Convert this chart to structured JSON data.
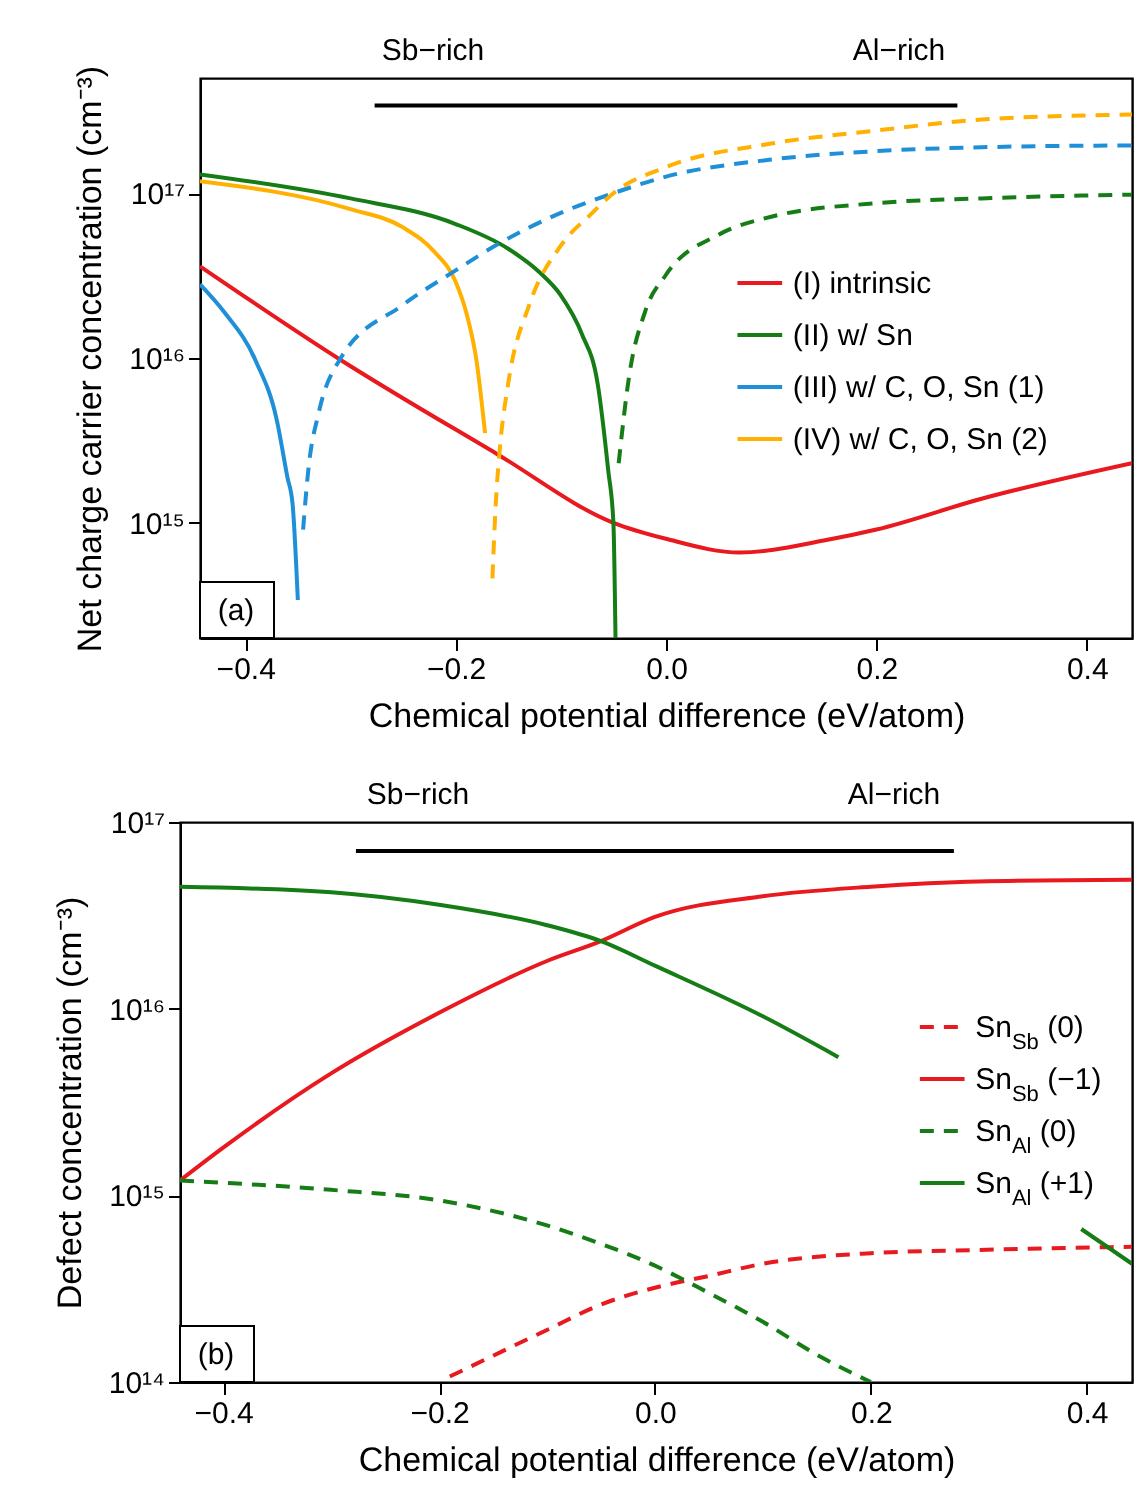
{
  "chart_data": [
    {
      "type": "line",
      "xlabel": "Chemical potential difference (eV/atom)",
      "ylabel": "Net charge carrier concentration (cm⁻³)",
      "xlim": [
        -0.443,
        0.443
      ],
      "ylim": [
        200000000000000.0,
        5e+17
      ],
      "log": true,
      "legend": "right",
      "xticks": [
        {
          "value": -0.4,
          "label": "−0.4"
        },
        {
          "value": -0.2,
          "label": "−0.2"
        },
        {
          "value": 0,
          "label": "0.0"
        },
        {
          "value": 0.2,
          "label": "0.2"
        },
        {
          "value": 0.4,
          "label": "0.4"
        }
      ],
      "yticks": [
        {
          "value": 1000000000000000.0,
          "label": "10¹⁵"
        },
        {
          "value": 1e+16,
          "label": "10¹⁶"
        },
        {
          "value": 1e+17,
          "label": "10¹⁷"
        }
      ],
      "annotations": [
        "Sb−rich",
        "Al−rich",
        "(a)"
      ],
      "series": [
        {
          "name": "(I) intrinsic",
          "color": "#e8191f",
          "line_style": "solid",
          "x": [
            -0.443,
            -0.31,
            -0.16,
            -0.05,
            0.0,
            0.07,
            0.15,
            0.2,
            0.3,
            0.443
          ],
          "values": [
            3.6e+16,
            9800000000000000.0,
            2600000000000000.0,
            1000000000000000.0,
            800000000000000.0,
            660000000000000.0,
            780000000000000.0,
            910000000000000.0,
            1400000000000000.0,
            2300000000000000.0
          ]
        },
        {
          "name": "(II) w/ Sn",
          "color": "#167d16",
          "line_style": "solid",
          "x": [
            -0.443,
            -0.3,
            -0.2,
            -0.15,
            -0.12,
            -0.1,
            -0.08,
            -0.065,
            -0.055,
            -0.05,
            -0.048
          ],
          "values": [
            1.3e+17,
            9.3e+16,
            6.5e+16,
            4.6e+16,
            3.3e+16,
            2.4e+16,
            1.4e+16,
            7000000000000000.0,
            2100000000000000.0,
            1000000000000000.0,
            200000000000000.0
          ]
        },
        {
          "name": "(III) w/ C, O, Sn (1)",
          "color": "#1f90d8",
          "line_style": "solid",
          "x": [
            -0.443,
            -0.42,
            -0.39,
            -0.37,
            -0.36,
            -0.355,
            -0.35
          ],
          "values": [
            2.8e+16,
            1.9e+16,
            9600000000000000.0,
            4200000000000000.0,
            1900000000000000.0,
            1300000000000000.0,
            340000000000000.0
          ]
        },
        {
          "name": "(IV) w/ C, O, Sn (2)",
          "color": "#ffb000",
          "line_style": "solid",
          "x": [
            -0.443,
            -0.3,
            -0.25,
            -0.22,
            -0.2,
            -0.19,
            -0.18,
            -0.172
          ],
          "values": [
            1.18e+17,
            8e+16,
            6.2e+16,
            4.4e+16,
            2.9e+16,
            1.9e+16,
            9500000000000000.0,
            3500000000000000.0
          ]
        },
        {
          "color": "#167d16",
          "line_style": "dashed",
          "x": [
            -0.045,
            -0.035,
            -0.02,
            0.0,
            0.05,
            0.1,
            0.2,
            0.3,
            0.443
          ],
          "values": [
            2300000000000000.0,
            7800000000000000.0,
            1.9e+16,
            3.2e+16,
            5.6e+16,
            7.2e+16,
            8.7e+16,
            9.3e+16,
            9.8e+16
          ]
        },
        {
          "color": "#1f90d8",
          "line_style": "dashed",
          "x": [
            -0.345,
            -0.34,
            -0.33,
            -0.31,
            -0.25,
            -0.2,
            -0.16,
            -0.1,
            -0.05,
            0.0,
            0.1,
            0.2,
            0.3,
            0.443
          ],
          "values": [
            910000000000000.0,
            2100000000000000.0,
            4700000000000000.0,
            9800000000000000.0,
            2.1e+16,
            3.4e+16,
            4.9e+16,
            7.6e+16,
            1e+17,
            1.26e+17,
            1.6e+17,
            1.8e+17,
            1.9e+17,
            1.95e+17
          ]
        },
        {
          "color": "#ffb000",
          "line_style": "dashed",
          "x": [
            -0.165,
            -0.162,
            -0.158,
            -0.15,
            -0.13,
            -0.1,
            -0.07,
            -0.05,
            0.0,
            0.1,
            0.2,
            0.3,
            0.443
          ],
          "values": [
            460000000000000.0,
            1250000000000000.0,
            2800000000000000.0,
            7000000000000000.0,
            2.1e+16,
            4.8e+16,
            7.6e+16,
            1e+17,
            1.44e+17,
            2e+17,
            2.4e+17,
            2.8e+17,
            3e+17
          ]
        },
        {
          "color": "#000000",
          "line_style": "solid",
          "x": [
            -0.277,
            0.277
          ],
          "values": [
            3.4e+17,
            3.4e+17
          ]
        }
      ]
    },
    {
      "type": "line",
      "xlabel": "Chemical potential difference (eV/atom)",
      "ylabel": "Defect concentration (cm⁻³)",
      "xlim": [
        -0.44,
        0.442
      ],
      "ylim": [
        100000000000000.0,
        1e+17
      ],
      "log": true,
      "legend": "right",
      "xticks": [
        {
          "value": -0.4,
          "label": "−0.4"
        },
        {
          "value": -0.2,
          "label": "−0.2"
        },
        {
          "value": 0,
          "label": "0.0"
        },
        {
          "value": 0.2,
          "label": "0.2"
        },
        {
          "value": 0.4,
          "label": "0.4"
        }
      ],
      "yticks": [
        {
          "value": 100000000000000.0,
          "label": "10¹⁴"
        },
        {
          "value": 1000000000000000.0,
          "label": "10¹⁵"
        },
        {
          "value": 1e+16,
          "label": "10¹⁶"
        },
        {
          "value": 1e+17,
          "label": "10¹⁷"
        }
      ],
      "annotations": [
        "Sb−rich",
        "Al−rich",
        "(b)"
      ],
      "series": [
        {
          "name": "Sn$_{Sb}$ (0)",
          "color": "#e8191f",
          "line_style": "dashed",
          "x": [
            -0.19,
            -0.1,
            -0.05,
            0.0,
            0.05,
            0.1,
            0.2,
            0.3,
            0.442
          ],
          "values": [
            107000000000000.0,
            190000000000000.0,
            260000000000000.0,
            320000000000000.0,
            370000000000000.0,
            430000000000000.0,
            490000000000000.0,
            510000000000000.0,
            530000000000000.0
          ]
        },
        {
          "name": "Sn$_{Sb}$ (−1)",
          "color": "#e8191f",
          "line_style": "solid",
          "x": [
            -0.44,
            -0.4,
            -0.3,
            -0.2,
            -0.1,
            -0.05,
            0.0,
            0.1,
            0.2,
            0.3,
            0.442
          ],
          "values": [
            1200000000000000.0,
            1800000000000000.0,
            4500000000000000.0,
            9500000000000000.0,
            1.8e+16,
            2.3e+16,
            3.1e+16,
            4e+16,
            4.5e+16,
            4.8e+16,
            4.9e+16
          ]
        },
        {
          "name": "Sn$_{Al}$ (0)",
          "color": "#167d16",
          "line_style": "dashed",
          "x": [
            -0.44,
            -0.3,
            -0.2,
            -0.1,
            -0.05,
            0.0,
            0.05,
            0.1,
            0.15,
            0.2
          ],
          "values": [
            1200000000000000.0,
            1070000000000000.0,
            940000000000000.0,
            690000000000000.0,
            550000000000000.0,
            420000000000000.0,
            300000000000000.0,
            210000000000000.0,
            140000000000000.0,
            100000000000000.0
          ]
        },
        {
          "name": "Sn$_{Al}$ (+1)",
          "color": "#167d16",
          "line_style": "solid",
          "x": [
            -0.44,
            -0.3,
            -0.2,
            -0.1,
            -0.05,
            0.0,
            0.1,
            0.17,
            0.27,
            0.395,
            0.442
          ],
          "values": [
            4.5e+16,
            4.2e+16,
            3.6e+16,
            2.8e+16,
            2.3e+16,
            1.7e+16,
            9100000000000000.0,
            5500000000000000.0,
            null,
            660000000000000.0,
            430000000000000.0
          ]
        },
        {
          "color": "#000000",
          "line_style": "solid",
          "x": [
            -0.277,
            0.277
          ],
          "values": [
            7e+16,
            7e+16
          ]
        }
      ]
    }
  ]
}
